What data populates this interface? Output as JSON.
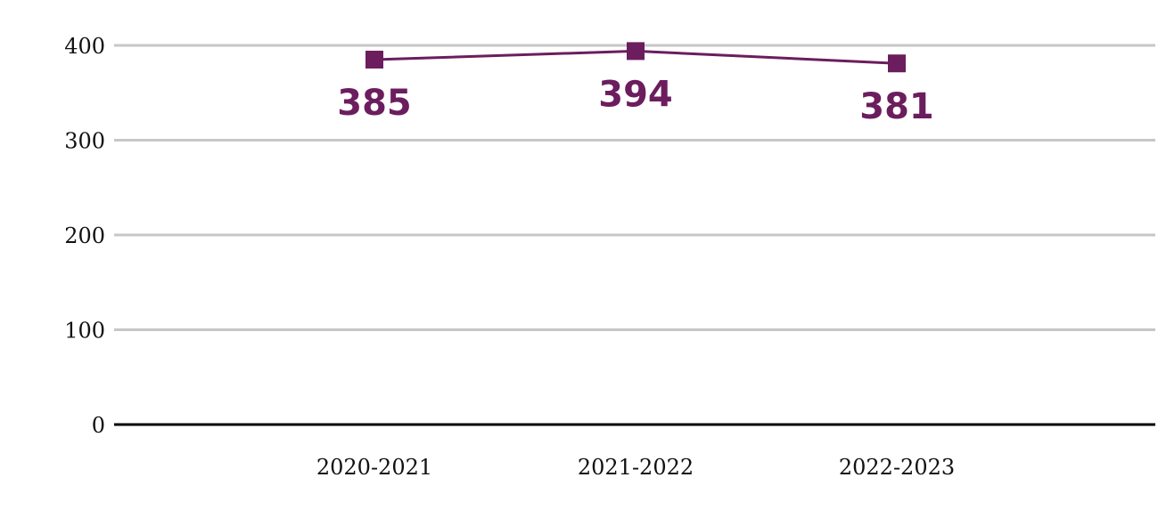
{
  "chart_data": {
    "type": "line",
    "categories": [
      "2020-2021",
      "2021-2022",
      "2022-2023"
    ],
    "series": [
      {
        "values": [
          385,
          394,
          381
        ]
      }
    ],
    "data_labels": [
      "385",
      "394",
      "381"
    ],
    "y_ticks": [
      {
        "value": 0,
        "label": "0"
      },
      {
        "value": 100,
        "label": "100"
      },
      {
        "value": 200,
        "label": "200"
      },
      {
        "value": 300,
        "label": "300"
      },
      {
        "value": 400,
        "label": "400"
      }
    ],
    "ylim": [
      0,
      400
    ],
    "grid": true,
    "legend": "none",
    "colors": {
      "series": "#6B1D5E",
      "grid": "#C8C6C8",
      "axis": "#000000"
    },
    "marker": "square"
  }
}
